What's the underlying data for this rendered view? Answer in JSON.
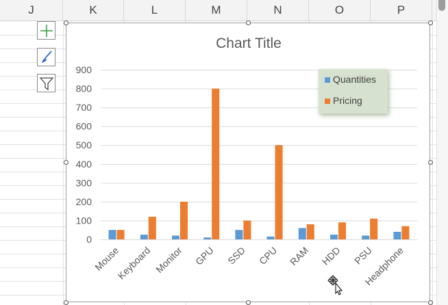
{
  "columns": [
    "J",
    "K",
    "L",
    "M",
    "N",
    "O",
    "P"
  ],
  "chart_tools": [
    "add-chart-element-icon",
    "chart-styles-brush-icon",
    "chart-filter-icon"
  ],
  "colors": {
    "quantities": "#5b9bd5",
    "pricing": "#ed7d31",
    "gridline": "#d9d9d9",
    "legend_bg": "#d6e2cf"
  },
  "chart_data": {
    "type": "bar",
    "title": "Chart Title",
    "categories": [
      "Mouse",
      "Keyboard",
      "Monitor",
      "GPU",
      "SSD",
      "CPU",
      "RAM",
      "HDD",
      "PSU",
      "Headphone"
    ],
    "series": [
      {
        "name": "Quantities",
        "values": [
          50,
          25,
          20,
          10,
          50,
          15,
          60,
          25,
          20,
          40
        ]
      },
      {
        "name": "Pricing",
        "values": [
          50,
          120,
          200,
          800,
          100,
          500,
          80,
          90,
          110,
          70
        ]
      }
    ],
    "yticks": [
      "0",
      "100",
      "200",
      "300",
      "400",
      "500",
      "600",
      "700",
      "800",
      "900"
    ],
    "ylim": [
      0,
      900
    ],
    "grid": true,
    "legend": "top-right"
  }
}
